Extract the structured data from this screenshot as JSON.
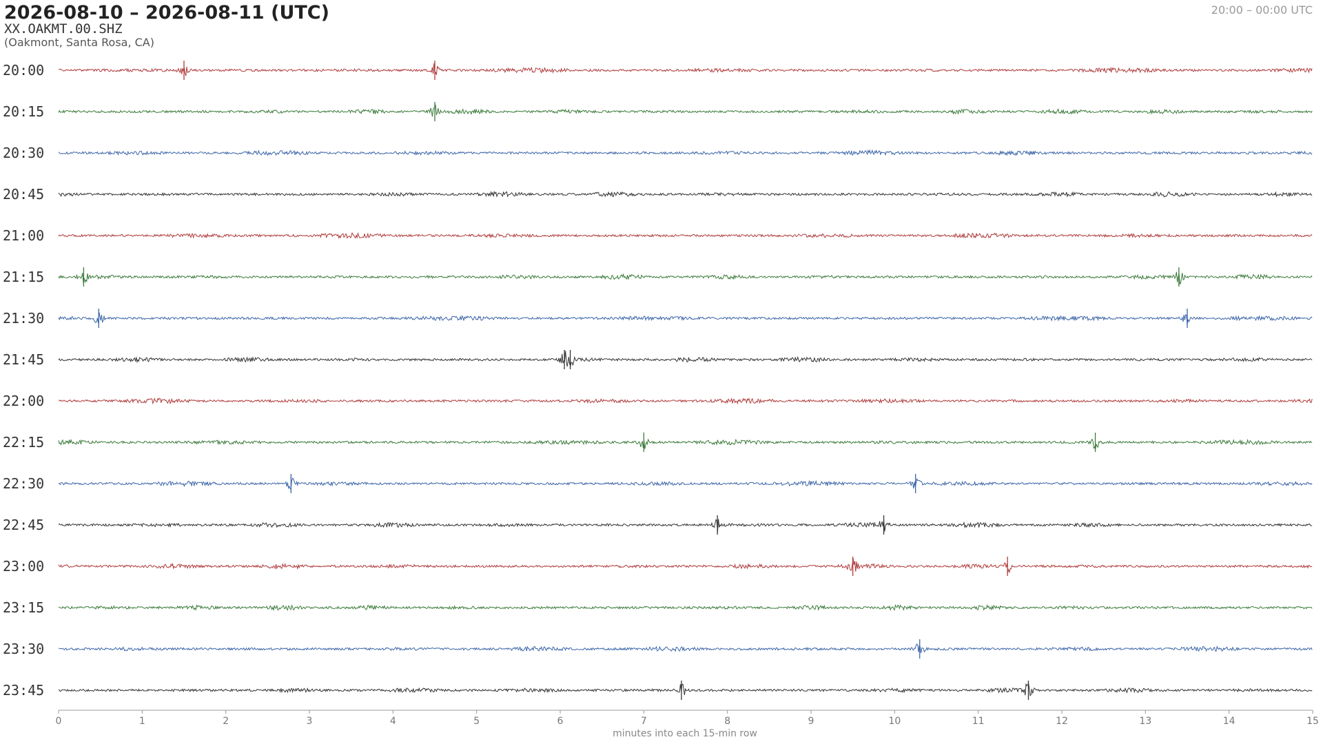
{
  "chart_data": {
    "type": "helicorder",
    "title": "2026-08-10 – 2026-08-11  (UTC)",
    "station": "XX.OAKMT.00.SHZ",
    "location": "(Oakmont, Santa Rosa, CA)",
    "time_range": "20:00 – 00:00 UTC",
    "xlabel": "minutes into each 15-min row",
    "xlim": [
      0,
      15
    ],
    "xticks": [
      0,
      1,
      2,
      3,
      4,
      5,
      6,
      7,
      8,
      9,
      10,
      11,
      12,
      13,
      14,
      15
    ],
    "rows": [
      {
        "label": "20:00",
        "color": "#b03a3a",
        "events": [
          1.5,
          4.5
        ]
      },
      {
        "label": "20:15",
        "color": "#3a7a3a",
        "events": [
          4.5
        ]
      },
      {
        "label": "20:30",
        "color": "#3a64a8",
        "events": []
      },
      {
        "label": "20:45",
        "color": "#333333",
        "events": []
      },
      {
        "label": "21:00",
        "color": "#b03a3a",
        "events": []
      },
      {
        "label": "21:15",
        "color": "#3a7a3a",
        "events": [
          0.3,
          13.4
        ]
      },
      {
        "label": "21:30",
        "color": "#3a64a8",
        "events": [
          0.48,
          13.5
        ]
      },
      {
        "label": "21:45",
        "color": "#333333",
        "events": [
          6.05,
          6.12
        ]
      },
      {
        "label": "22:00",
        "color": "#b03a3a",
        "events": []
      },
      {
        "label": "22:15",
        "color": "#3a7a3a",
        "events": [
          7.0,
          12.4
        ]
      },
      {
        "label": "22:30",
        "color": "#3a64a8",
        "events": [
          2.78,
          10.25
        ]
      },
      {
        "label": "22:45",
        "color": "#333333",
        "events": [
          7.88,
          9.87
        ]
      },
      {
        "label": "23:00",
        "color": "#b03a3a",
        "events": [
          9.5,
          11.35
        ]
      },
      {
        "label": "23:15",
        "color": "#3a7a3a",
        "events": []
      },
      {
        "label": "23:30",
        "color": "#3a64a8",
        "events": [
          10.3
        ]
      },
      {
        "label": "23:45",
        "color": "#333333",
        "events": [
          7.45,
          11.6
        ]
      }
    ]
  }
}
